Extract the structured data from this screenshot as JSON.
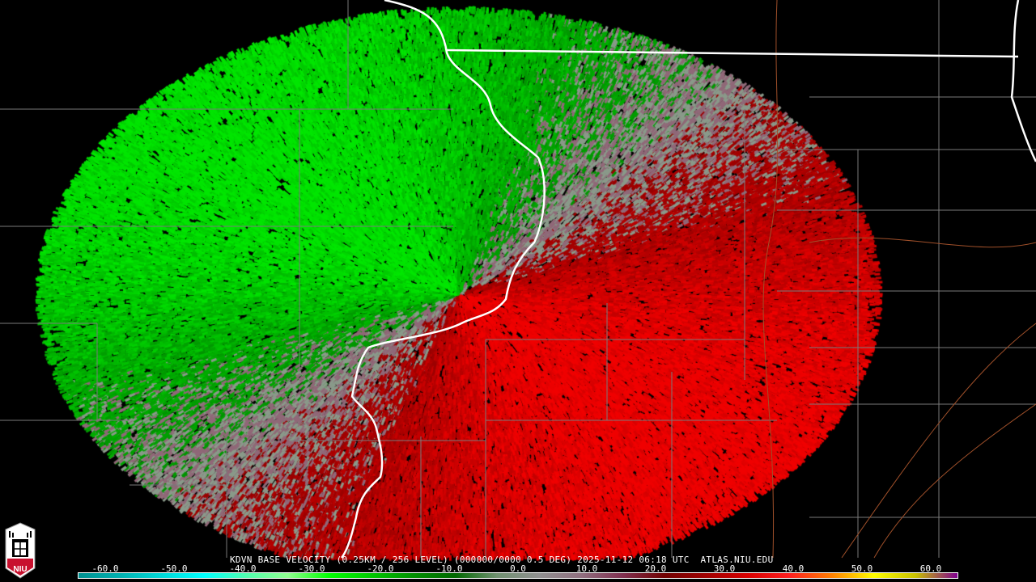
{
  "product": {
    "title": "KDVN BASE VELOCITY (0.25KM / 256 LEVEL) (000000/0000 0.5 DEG) 2025-11-12 06:18 UTC  ATLAS.NIU.EDU",
    "station": "KDVN"
  },
  "logo": {
    "text": "NIU"
  },
  "colorbar": {
    "ticks": [
      "-60.0",
      "-50.0",
      "-40.0",
      "-30.0",
      "-20.0",
      "-10.0",
      "0.0",
      "10.0",
      "20.0",
      "30.0",
      "40.0",
      "50.0",
      "60.0"
    ],
    "tick_values": [
      -60,
      -50,
      -40,
      -30,
      -20,
      -10,
      0,
      10,
      20,
      30,
      40,
      50,
      60
    ],
    "range": [
      -64,
      64
    ],
    "colors": [
      "#009090",
      "#00b0b0",
      "#00d8d8",
      "#00ffff",
      "#50ffb0",
      "#90ff90",
      "#00ff00",
      "#00c800",
      "#009000",
      "#006800",
      "#709070",
      "#909090",
      "#907080",
      "#803050",
      "#700000",
      "#a00000",
      "#d80000",
      "#ff2020",
      "#ff8000",
      "#ffff00",
      "#c8c000",
      "#800090"
    ]
  },
  "colors": {
    "inbound": "#00c000",
    "outbound": "#c00000",
    "state_line": "#ffffff",
    "county_line": "#808080",
    "river": "#a05020"
  }
}
